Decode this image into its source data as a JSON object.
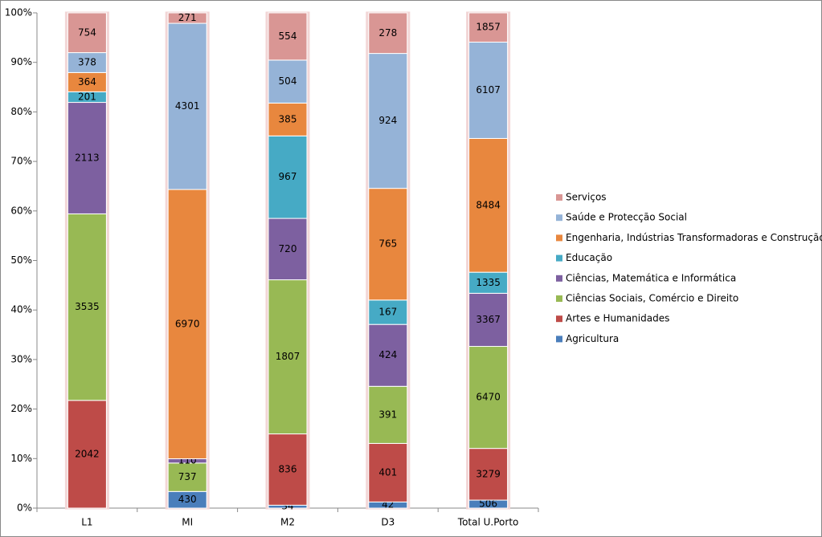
{
  "chart_data": {
    "type": "bar",
    "stacked": "percent",
    "categories": [
      "L1",
      "MI",
      "M2",
      "D3",
      "Total U.Porto"
    ],
    "series": [
      {
        "name": "Agricultura",
        "color": "#4a7ebb",
        "values": [
          null,
          430,
          34,
          42,
          506
        ]
      },
      {
        "name": "Artes e Humanidades",
        "color": "#be4b48",
        "values": [
          2042,
          null,
          836,
          401,
          3279
        ]
      },
      {
        "name": "Ciências Sociais, Comércio e Direito",
        "color": "#98b954",
        "values": [
          3535,
          737,
          1807,
          391,
          6470
        ]
      },
      {
        "name": "Ciências, Matemática e Informática",
        "color": "#7d60a0",
        "values": [
          2113,
          110,
          720,
          424,
          3367
        ]
      },
      {
        "name": "Educação",
        "color": "#46aac5",
        "values": [
          201,
          null,
          967,
          167,
          1335
        ]
      },
      {
        "name": "Engenharia, Indústrias Transformadoras e Construção",
        "color": "#e8873e",
        "values": [
          364,
          6970,
          385,
          765,
          8484
        ]
      },
      {
        "name": "Saúde e Protecção Social",
        "color": "#95b3d7",
        "values": [
          378,
          4301,
          504,
          924,
          6107
        ]
      },
      {
        "name": "Serviços",
        "color": "#d99694",
        "values": [
          754,
          271,
          554,
          278,
          1857
        ]
      }
    ],
    "ylim": [
      0,
      100
    ],
    "yticks": [
      {
        "value": 0,
        "label": "0%"
      },
      {
        "value": 10,
        "label": "10%"
      },
      {
        "value": 20,
        "label": "20%"
      },
      {
        "value": 30,
        "label": "30%"
      },
      {
        "value": 40,
        "label": "40%"
      },
      {
        "value": 50,
        "label": "50%"
      },
      {
        "value": 60,
        "label": "60%"
      },
      {
        "value": 70,
        "label": "70%"
      },
      {
        "value": 80,
        "label": "80%"
      },
      {
        "value": 90,
        "label": "90%"
      },
      {
        "value": 100,
        "label": "100%"
      }
    ],
    "legend": "right"
  }
}
